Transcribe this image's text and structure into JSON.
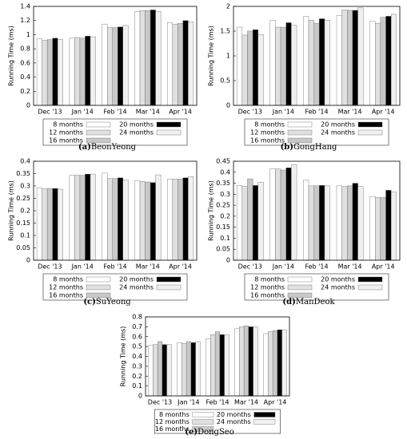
{
  "chart_data": [
    {
      "type": "bar",
      "label": "(a)",
      "caption": "BeonYeong",
      "y_label": "Running Time (ms)",
      "categories": [
        "Dec '13",
        "Jan '14",
        "Feb '14",
        "Mar '14",
        "Apr '14"
      ],
      "ylim": [
        0,
        1.4
      ],
      "yticks": [
        0,
        0.2,
        0.4,
        0.6,
        0.8,
        1,
        1.2,
        1.4
      ],
      "series": [
        {
          "name": "8 months",
          "color": "#ffffff",
          "values": [
            0.94,
            0.95,
            1.15,
            1.33,
            1.17
          ]
        },
        {
          "name": "12 months",
          "color": "#e0e0e0",
          "values": [
            0.92,
            0.96,
            1.1,
            1.34,
            1.15
          ]
        },
        {
          "name": "16 months",
          "color": "#c8c8c8",
          "values": [
            0.93,
            0.95,
            1.1,
            1.34,
            1.16
          ]
        },
        {
          "name": "20 months",
          "color": "#000000",
          "values": [
            0.95,
            0.98,
            1.11,
            1.35,
            1.2
          ]
        },
        {
          "name": "24 months",
          "color": "#f0f0f0",
          "values": [
            0.93,
            0.97,
            1.13,
            1.33,
            1.18
          ]
        }
      ]
    },
    {
      "type": "bar",
      "label": "(b)",
      "caption": "GongHang",
      "y_label": "Running Time (ms)",
      "categories": [
        "Dec '13",
        "Jan '14",
        "Feb '14",
        "Mar '14",
        "Apr '14"
      ],
      "ylim": [
        0,
        2
      ],
      "yticks": [
        0,
        0.5,
        1,
        1.5,
        2
      ],
      "series": [
        {
          "name": "8 months",
          "color": "#ffffff",
          "values": [
            1.58,
            1.72,
            1.8,
            1.82,
            1.7
          ]
        },
        {
          "name": "12 months",
          "color": "#e0e0e0",
          "values": [
            1.42,
            1.58,
            1.72,
            1.93,
            1.66
          ]
        },
        {
          "name": "16 months",
          "color": "#c8c8c8",
          "values": [
            1.5,
            1.58,
            1.66,
            1.92,
            1.78
          ]
        },
        {
          "name": "20 months",
          "color": "#000000",
          "values": [
            1.53,
            1.67,
            1.75,
            1.92,
            1.8
          ]
        },
        {
          "name": "24 months",
          "color": "#f0f0f0",
          "values": [
            1.43,
            1.62,
            1.72,
            1.97,
            1.84
          ]
        }
      ]
    },
    {
      "type": "bar",
      "label": "(c)",
      "caption": "SuYeong",
      "y_label": "Running Time (ms)",
      "categories": [
        "Dec '13",
        "Jan '14",
        "Feb '14",
        "Mar '14",
        "Apr '14"
      ],
      "ylim": [
        0,
        0.4
      ],
      "yticks": [
        0,
        0.05,
        0.1,
        0.15,
        0.2,
        0.25,
        0.3,
        0.35,
        0.4
      ],
      "series": [
        {
          "name": "8 months",
          "color": "#ffffff",
          "values": [
            0.293,
            0.343,
            0.352,
            0.322,
            0.328
          ]
        },
        {
          "name": "12 months",
          "color": "#e0e0e0",
          "values": [
            0.288,
            0.343,
            0.33,
            0.318,
            0.328
          ]
        },
        {
          "name": "16 months",
          "color": "#c8c8c8",
          "values": [
            0.29,
            0.343,
            0.33,
            0.316,
            0.328
          ]
        },
        {
          "name": "20 months",
          "color": "#000000",
          "values": [
            0.29,
            0.348,
            0.333,
            0.314,
            0.333
          ]
        },
        {
          "name": "24 months",
          "color": "#f0f0f0",
          "values": [
            0.287,
            0.348,
            0.325,
            0.345,
            0.338
          ]
        }
      ]
    },
    {
      "type": "bar",
      "label": "(d)",
      "caption": "ManDeok",
      "y_label": "Running Time (ms)",
      "categories": [
        "Dec '13",
        "Jan '14",
        "Feb '14",
        "Mar '14",
        "Apr '14"
      ],
      "ylim": [
        0,
        0.45
      ],
      "yticks": [
        0,
        0.05,
        0.1,
        0.15,
        0.2,
        0.25,
        0.3,
        0.35,
        0.4,
        0.45
      ],
      "series": [
        {
          "name": "8 months",
          "color": "#ffffff",
          "values": [
            0.34,
            0.415,
            0.365,
            0.338,
            0.29
          ]
        },
        {
          "name": "12 months",
          "color": "#e0e0e0",
          "values": [
            0.335,
            0.415,
            0.338,
            0.335,
            0.285
          ]
        },
        {
          "name": "16 months",
          "color": "#c8c8c8",
          "values": [
            0.37,
            0.41,
            0.338,
            0.338,
            0.285
          ]
        },
        {
          "name": "20 months",
          "color": "#000000",
          "values": [
            0.34,
            0.42,
            0.34,
            0.35,
            0.318
          ]
        },
        {
          "name": "24 months",
          "color": "#f0f0f0",
          "values": [
            0.355,
            0.435,
            0.338,
            0.335,
            0.31
          ]
        }
      ]
    },
    {
      "type": "bar",
      "label": "(e)",
      "caption": "DongSeo",
      "y_label": "Running Time (ms)",
      "categories": [
        "Dec '13",
        "Jan '14",
        "Feb '14",
        "Mar '14",
        "Apr '14"
      ],
      "ylim": [
        0,
        0.8
      ],
      "yticks": [
        0,
        0.1,
        0.2,
        0.3,
        0.4,
        0.5,
        0.6,
        0.7,
        0.8
      ],
      "series": [
        {
          "name": "8 months",
          "color": "#ffffff",
          "values": [
            0.51,
            0.54,
            0.58,
            0.68,
            0.63
          ]
        },
        {
          "name": "12 months",
          "color": "#e0e0e0",
          "values": [
            0.52,
            0.53,
            0.62,
            0.7,
            0.65
          ]
        },
        {
          "name": "16 months",
          "color": "#c8c8c8",
          "values": [
            0.55,
            0.55,
            0.65,
            0.71,
            0.66
          ]
        },
        {
          "name": "20 months",
          "color": "#000000",
          "values": [
            0.52,
            0.54,
            0.62,
            0.7,
            0.67
          ]
        },
        {
          "name": "24 months",
          "color": "#f0f0f0",
          "values": [
            0.52,
            0.55,
            0.62,
            0.7,
            0.67
          ]
        }
      ]
    }
  ]
}
